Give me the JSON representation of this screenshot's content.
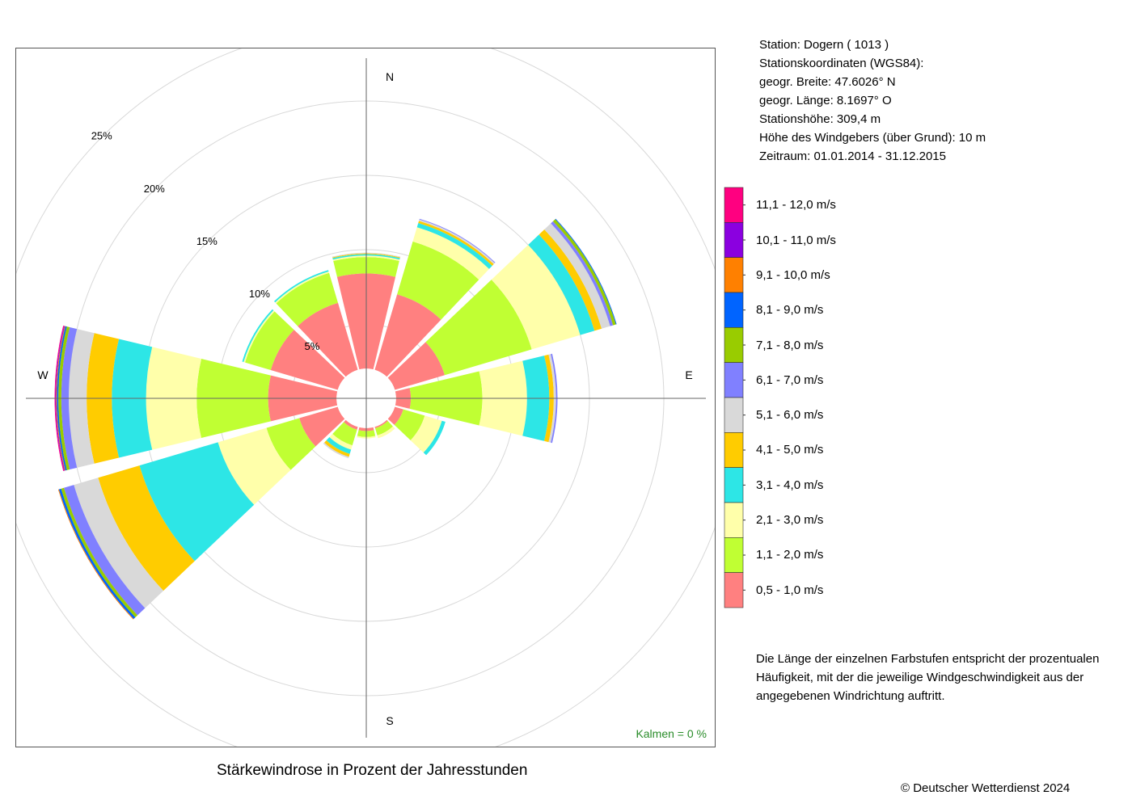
{
  "station_info": {
    "lines": [
      "Station:  Dogern  ( 1013 )",
      "Stationskoordinaten (WGS84):",
      "geogr. Breite: 47.6026° N",
      "geogr. Länge:   8.1697° O",
      "Stationshöhe: 309,4 m",
      "Höhe des Windgebers (über Grund): 10 m",
      "Zeitraum: 01.01.2014 - 31.12.2015"
    ]
  },
  "legend": {
    "items": [
      {
        "label": "11,1 - 12,0 m/s",
        "color": "#ff0080"
      },
      {
        "label": "10,1 - 11,0 m/s",
        "color": "#8b00e0"
      },
      {
        "label": "9,1 - 10,0 m/s",
        "color": "#ff8000"
      },
      {
        "label": "8,1 - 9,0 m/s",
        "color": "#0064ff"
      },
      {
        "label": "7,1 - 8,0 m/s",
        "color": "#99cc00"
      },
      {
        "label": "6,1 - 7,0 m/s",
        "color": "#8080ff"
      },
      {
        "label": "5,1 - 6,0 m/s",
        "color": "#d9d9d9"
      },
      {
        "label": "4,1 - 5,0 m/s",
        "color": "#ffcc00"
      },
      {
        "label": "3,1 - 4,0 m/s",
        "color": "#2de6e6"
      },
      {
        "label": "2,1 - 3,0 m/s",
        "color": "#ffffaa"
      },
      {
        "label": "1,1 - 2,0 m/s",
        "color": "#c0ff33"
      },
      {
        "label": "0,5 - 1,0 m/s",
        "color": "#ff8080"
      }
    ]
  },
  "note": "Die Länge der einzelnen Farbstufen entspricht der prozentualen Häufigkeit, mit der die jeweilige Windgeschwindigkeit aus der angegebenen Windrichtung auftritt.",
  "caption": "Stärkewindrose in Prozent der Jahresstunden",
  "copyright": "© Deutscher Wetterdienst  2024",
  "calms": "Kalmen  =  0 %",
  "chart_data": {
    "type": "wind-rose",
    "compass_labels": {
      "N": "N",
      "E": "E",
      "S": "S",
      "W": "W"
    },
    "radial_ticks": [
      5,
      10,
      15,
      20,
      25
    ],
    "radial_tick_labels": [
      "5%",
      "10%",
      "15%",
      "20%",
      "25%"
    ],
    "calm_radius_percent": 2.0,
    "speed_classes": [
      "0,5 - 1,0 m/s",
      "1,1 - 2,0 m/s",
      "2,1 - 3,0 m/s",
      "3,1 - 4,0 m/s",
      "4,1 - 5,0 m/s",
      "5,1 - 6,0 m/s",
      "6,1 - 7,0 m/s",
      "7,1 - 8,0 m/s",
      "8,1 - 9,0 m/s",
      "9,1 - 10,0 m/s",
      "10,1 - 11,0 m/s",
      "11,1 - 12,0 m/s"
    ],
    "colors": [
      "#ff8080",
      "#c0ff33",
      "#ffffaa",
      "#2de6e6",
      "#ffcc00",
      "#d9d9d9",
      "#8080ff",
      "#99cc00",
      "#0064ff",
      "#ff8000",
      "#8b00e0",
      "#ff0080"
    ],
    "sectors": [
      {
        "direction": 0,
        "cumulative_percent": [
          8.4,
          9.5,
          9.6,
          9.7,
          9.75,
          9.8
        ]
      },
      {
        "direction": 30,
        "cumulative_percent": [
          7.3,
          11.0,
          12.0,
          12.3,
          12.45,
          12.55,
          12.6
        ]
      },
      {
        "direction": 60,
        "cumulative_percent": [
          5.5,
          11.6,
          15.0,
          16.0,
          16.5,
          17.1,
          17.3,
          17.5,
          17.55
        ]
      },
      {
        "direction": 90,
        "cumulative_percent": [
          3.0,
          7.8,
          10.8,
          12.3,
          12.6,
          12.75,
          12.85
        ]
      },
      {
        "direction": 120,
        "cumulative_percent": [
          2.6,
          4.1,
          5.3,
          5.55
        ]
      },
      {
        "direction": 150,
        "cumulative_percent": [
          2.1,
          2.6,
          2.8
        ]
      },
      {
        "direction": 180,
        "cumulative_percent": [
          2.2,
          2.6,
          2.7
        ]
      },
      {
        "direction": 210,
        "cumulative_percent": [
          2.2,
          3.3,
          3.6,
          3.9,
          4.1,
          4.2
        ]
      },
      {
        "direction": 240,
        "cumulative_percent": [
          4.7,
          7.0,
          10.4,
          15.9,
          18.8,
          20.5,
          21.2,
          21.4,
          21.55,
          21.6
        ]
      },
      {
        "direction": 270,
        "cumulative_percent": [
          6.6,
          11.4,
          14.8,
          17.1,
          18.8,
          20.0,
          20.5,
          20.7,
          20.8,
          20.85,
          20.9,
          20.95
        ]
      },
      {
        "direction": 300,
        "cumulative_percent": [
          6.7,
          8.5,
          8.6,
          8.7
        ]
      },
      {
        "direction": 330,
        "cumulative_percent": [
          6.7,
          8.8,
          8.9,
          9.0
        ]
      }
    ]
  }
}
